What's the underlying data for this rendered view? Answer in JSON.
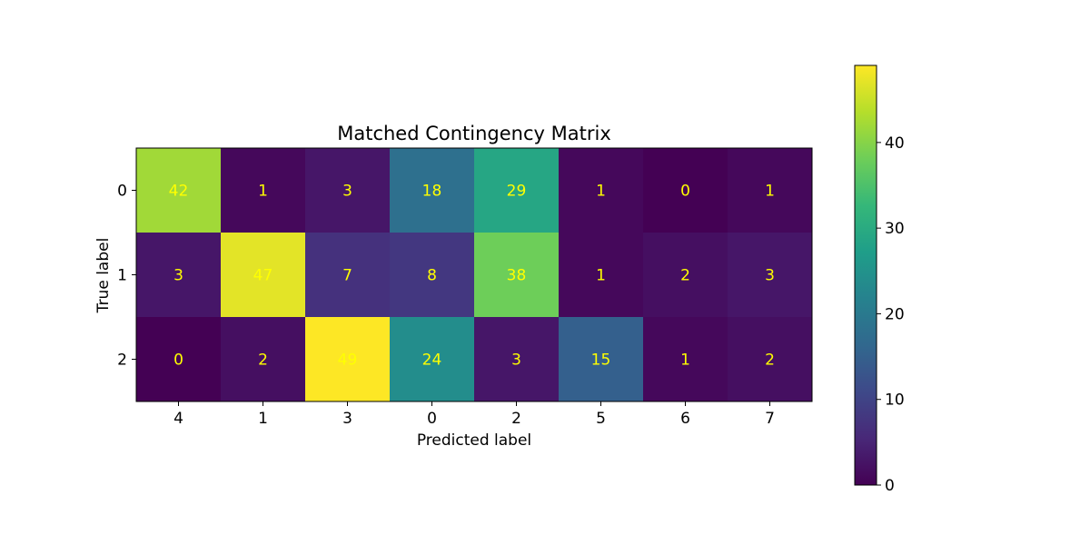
{
  "chart_data": {
    "type": "heatmap",
    "title": "Matched Contingency Matrix",
    "xlabel": "Predicted label",
    "ylabel": "True label",
    "x_categories": [
      "4",
      "1",
      "3",
      "0",
      "2",
      "5",
      "6",
      "7"
    ],
    "y_categories": [
      "0",
      "1",
      "2"
    ],
    "values": [
      [
        42,
        1,
        3,
        18,
        29,
        1,
        0,
        1
      ],
      [
        3,
        47,
        7,
        8,
        38,
        1,
        2,
        3
      ],
      [
        0,
        2,
        49,
        24,
        3,
        15,
        1,
        2
      ]
    ],
    "colormap": "viridis",
    "colorbar": {
      "min": 0,
      "max": 49,
      "ticks": [
        0,
        10,
        20,
        30,
        40
      ],
      "tick_labels": [
        "0",
        "10",
        "20",
        "30",
        "40"
      ]
    },
    "annotation_color": "#ffff00",
    "grid": false
  }
}
